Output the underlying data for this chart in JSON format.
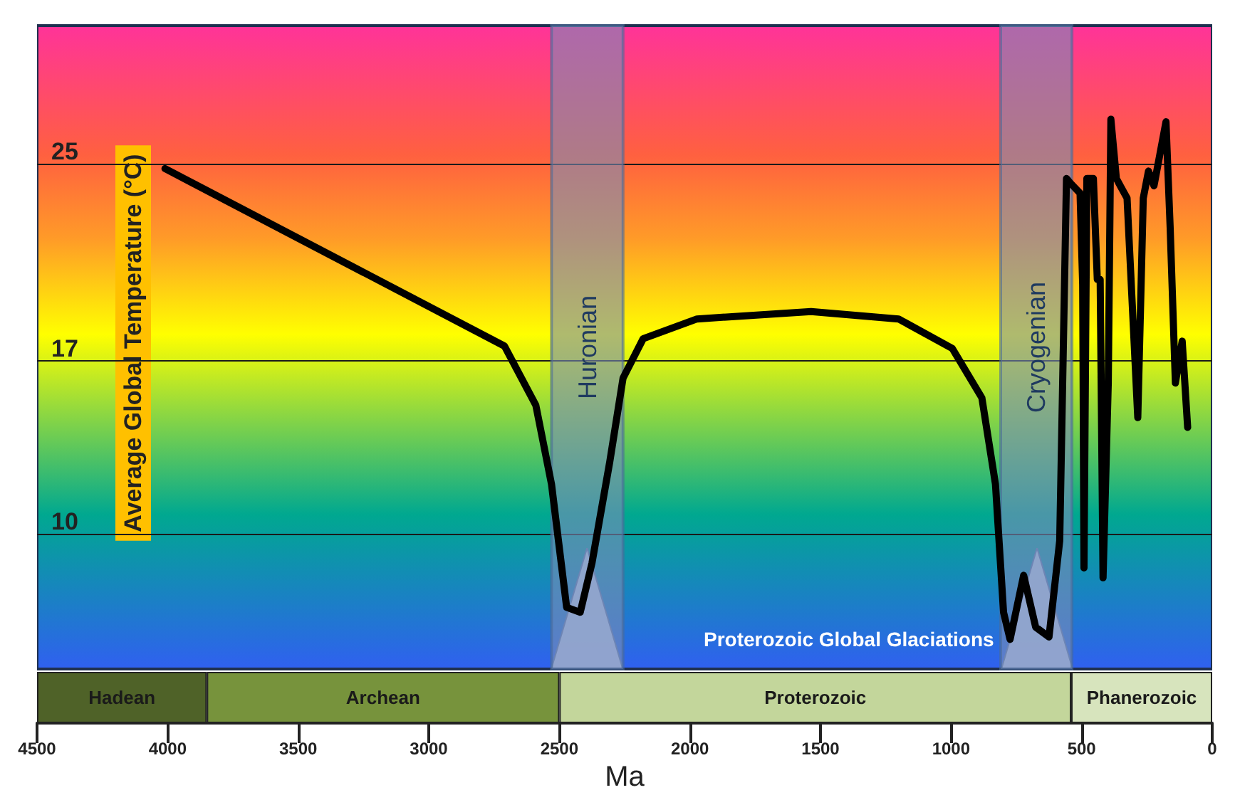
{
  "chart_data": [
    {
      "type": "line",
      "ylabel": "Average Global Temperature (°C)",
      "xlim": [
        4500,
        0
      ],
      "ylim": [
        4.5,
        30.6
      ],
      "yticks": [
        10,
        17,
        25
      ],
      "tick_labels": "y",
      "grid": "y",
      "legend": false,
      "marker": "none",
      "line_style": "solid",
      "series": [
        {
          "color": "#000000",
          "x": [
            4010,
            2710,
            2590,
            2530,
            2472,
            2420,
            2375,
            2307,
            2256,
            2179,
            1973,
            1536,
            1201,
            995,
            882,
            830,
            799,
            774,
            722,
            676,
            625,
            584,
            558,
            542,
            506,
            496,
            491,
            480,
            455,
            440,
            429,
            418,
            398,
            388,
            367,
            352,
            326,
            285,
            264,
            244,
            223,
            177,
            161,
            141,
            115,
            94
          ],
          "values": [
            24.8,
            17.6,
            15.2,
            12.0,
            7.0,
            6.8,
            8.8,
            12.9,
            16.3,
            17.9,
            18.7,
            19.0,
            18.7,
            17.5,
            15.5,
            12.0,
            6.8,
            5.7,
            8.3,
            6.2,
            5.8,
            9.7,
            24.4,
            24.2,
            23.8,
            20.1,
            8.6,
            24.4,
            24.4,
            20.3,
            20.3,
            8.2,
            16.1,
            26.8,
            24.4,
            24.1,
            23.6,
            14.7,
            23.6,
            24.7,
            24.1,
            26.7,
            22.4,
            16.1,
            17.8,
            14.3
          ]
        }
      ],
      "bands": [
        {
          "axis": "x",
          "from": 2530,
          "to": 2256,
          "label": "Huronian",
          "color": "#7a8cb8"
        },
        {
          "axis": "x",
          "from": 810,
          "to": 537,
          "label": "Cryogenian",
          "color": "#7a8cb8"
        }
      ],
      "annotations": [
        "Proterozoic Global Glaciations"
      ]
    },
    {
      "type": "bar",
      "orientation": "horizontal",
      "stacked": true,
      "categories": [
        null
      ],
      "xlabel": "Ma",
      "xlim": [
        4500,
        0
      ],
      "xticks": [
        4500,
        4000,
        3500,
        3000,
        2500,
        2000,
        1500,
        1000,
        500,
        0
      ],
      "tick_labels": "x",
      "legend": false,
      "series": [
        {
          "name": "Phanerozoic",
          "color": "#d7e4bd",
          "values": [
            540
          ]
        },
        {
          "name": "Proterozoic",
          "color": "#c3d69b",
          "values": [
            1960
          ]
        },
        {
          "name": "Archean",
          "color": "#77933c",
          "values": [
            1350
          ]
        },
        {
          "name": "Hadean",
          "color": "#4f6228",
          "values": [
            650
          ]
        }
      ]
    }
  ]
}
